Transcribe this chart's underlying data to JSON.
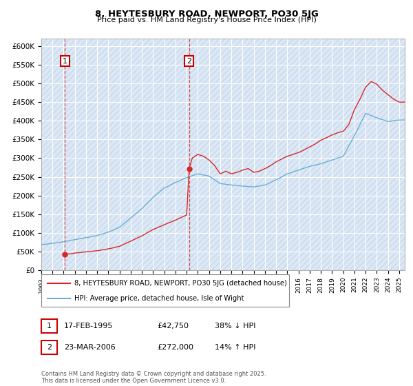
{
  "title1": "8, HEYTESBURY ROAD, NEWPORT, PO30 5JG",
  "title2": "Price paid vs. HM Land Registry's House Price Index (HPI)",
  "ylim": [
    0,
    620000
  ],
  "yticks": [
    0,
    50000,
    100000,
    150000,
    200000,
    250000,
    300000,
    350000,
    400000,
    450000,
    500000,
    550000,
    600000
  ],
  "ytick_labels": [
    "£0",
    "£50K",
    "£100K",
    "£150K",
    "£200K",
    "£250K",
    "£300K",
    "£350K",
    "£400K",
    "£450K",
    "£500K",
    "£550K",
    "£600K"
  ],
  "hpi_color": "#6baed6",
  "price_color": "#d62728",
  "bg_color": "#dce8f5",
  "hatch_color": "#c8d8ea",
  "transaction1_x": 1995.12,
  "transaction1_y": 42750,
  "transaction1_label": "1",
  "transaction2_x": 2006.22,
  "transaction2_y": 272000,
  "transaction2_label": "2",
  "legend_line1": "8, HEYTESBURY ROAD, NEWPORT, PO30 5JG (detached house)",
  "legend_line2": "HPI: Average price, detached house, Isle of Wight",
  "table_row1": [
    "1",
    "17-FEB-1995",
    "£42,750",
    "38% ↓ HPI"
  ],
  "table_row2": [
    "2",
    "23-MAR-2006",
    "£272,000",
    "14% ↑ HPI"
  ],
  "footer": "Contains HM Land Registry data © Crown copyright and database right 2025.\nThis data is licensed under the Open Government Licence v3.0.",
  "xmin": 1993,
  "xmax": 2025.5,
  "anchor_years_hpi": [
    1993,
    1994,
    1995,
    1996,
    1997,
    1998,
    1999,
    2000,
    2001,
    2002,
    2003,
    2004,
    2005,
    2006,
    2007,
    2008,
    2009,
    2010,
    2011,
    2012,
    2013,
    2014,
    2015,
    2016,
    2017,
    2018,
    2019,
    2020,
    2021,
    2022,
    2023,
    2024,
    2025
  ],
  "anchor_vals_hpi": [
    68000,
    72000,
    76000,
    82000,
    87000,
    93000,
    102000,
    115000,
    140000,
    165000,
    195000,
    220000,
    235000,
    248000,
    258000,
    252000,
    232000,
    228000,
    225000,
    223000,
    228000,
    242000,
    258000,
    268000,
    278000,
    285000,
    295000,
    305000,
    360000,
    420000,
    408000,
    398000,
    402000
  ],
  "anchor_years_price": [
    1995.12,
    1995.5,
    1996,
    1997,
    1998,
    1999,
    2000,
    2001,
    2002,
    2003,
    2004,
    2005,
    2006.0,
    2006.22,
    2006.5,
    2007.0,
    2007.5,
    2008.0,
    2008.5,
    2009.0,
    2009.5,
    2010.0,
    2010.5,
    2011.0,
    2011.5,
    2012.0,
    2012.5,
    2013.0,
    2013.5,
    2014.0,
    2014.5,
    2015.0,
    2015.5,
    2016.0,
    2016.5,
    2017.0,
    2017.5,
    2018.0,
    2018.5,
    2019.0,
    2019.5,
    2020.0,
    2020.5,
    2021.0,
    2021.5,
    2022.0,
    2022.5,
    2023.0,
    2023.5,
    2024.0,
    2024.5,
    2025.0
  ],
  "anchor_vals_price": [
    42750,
    43500,
    46000,
    49000,
    52000,
    57000,
    64000,
    78000,
    92000,
    109000,
    122000,
    134000,
    148000,
    272000,
    300000,
    310000,
    305000,
    295000,
    280000,
    258000,
    265000,
    258000,
    262000,
    268000,
    272000,
    262000,
    265000,
    272000,
    280000,
    290000,
    298000,
    305000,
    310000,
    315000,
    322000,
    330000,
    338000,
    348000,
    355000,
    362000,
    368000,
    372000,
    390000,
    430000,
    458000,
    490000,
    505000,
    498000,
    482000,
    470000,
    458000,
    450000
  ]
}
